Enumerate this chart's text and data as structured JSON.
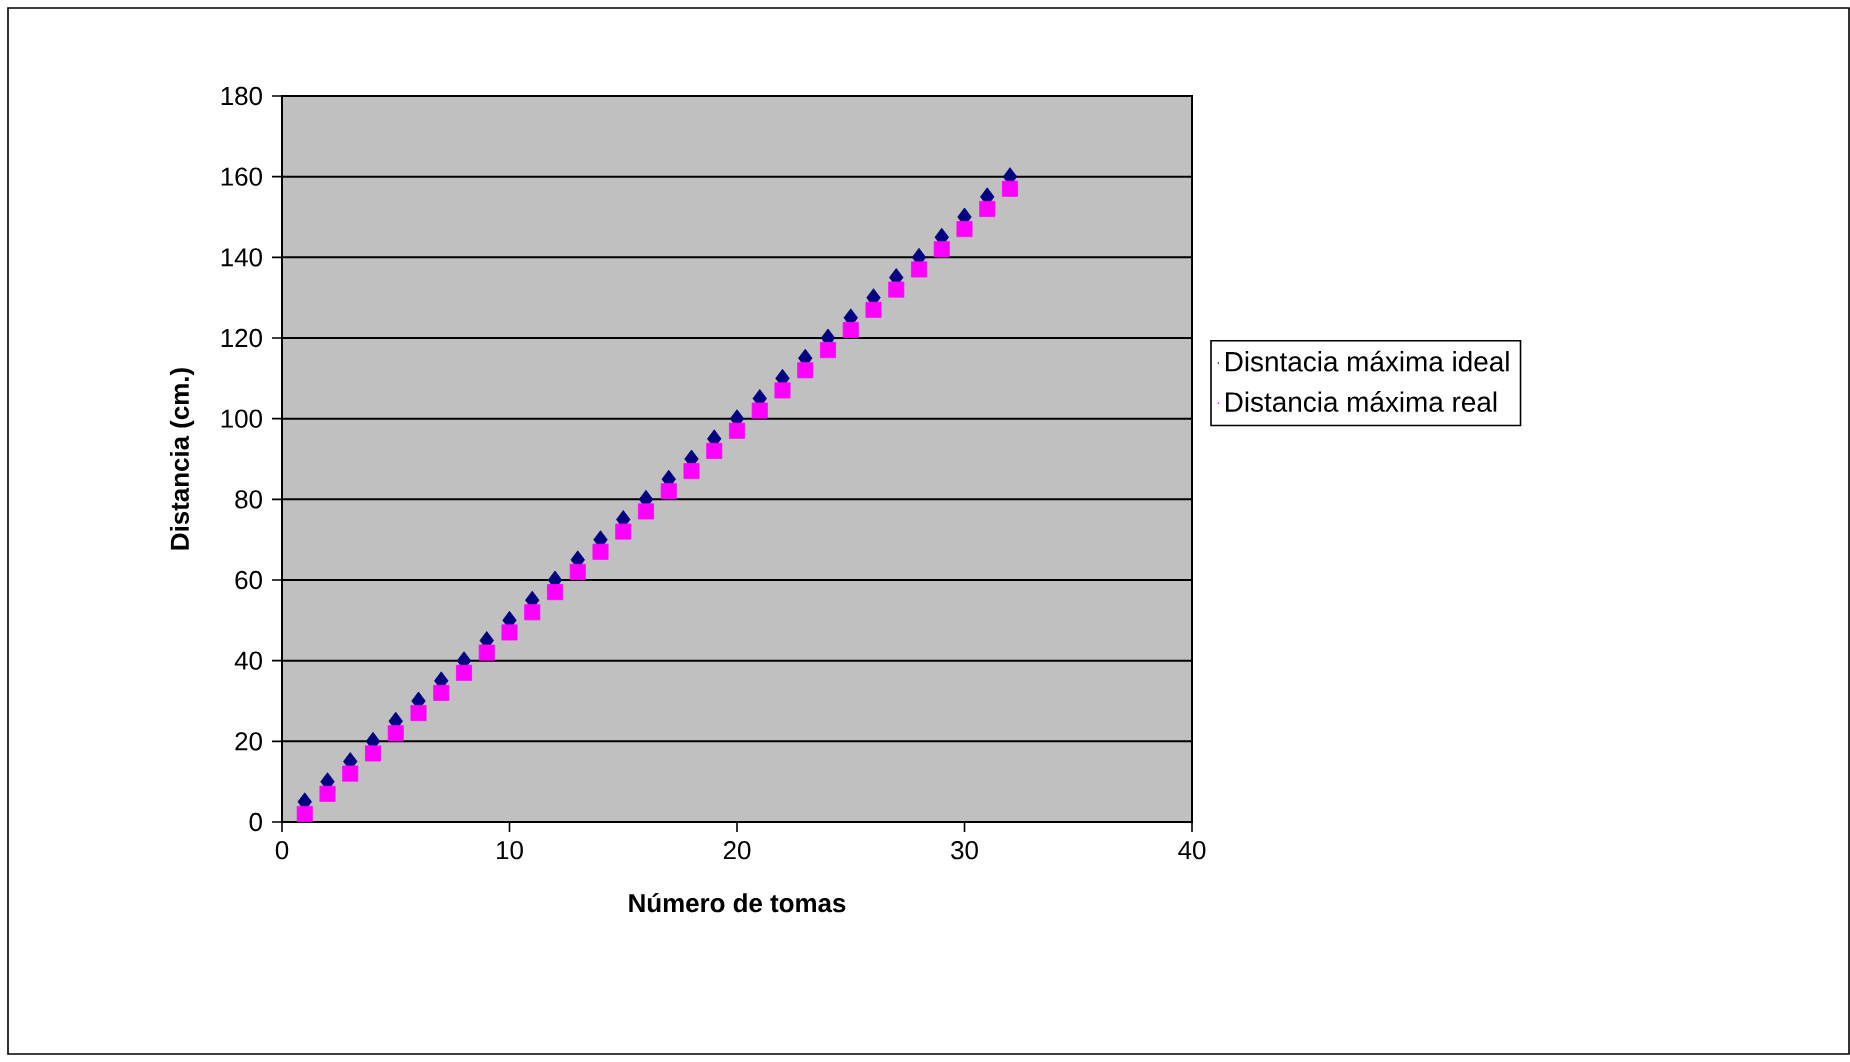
{
  "chart_data": {
    "type": "scatter",
    "xlabel": "Número de tomas",
    "ylabel": "Distancia (cm.)",
    "x": [
      1,
      2,
      3,
      4,
      5,
      6,
      7,
      8,
      9,
      10,
      11,
      12,
      13,
      14,
      15,
      16,
      17,
      18,
      19,
      20,
      21,
      22,
      23,
      24,
      25,
      26,
      27,
      28,
      29,
      30,
      31,
      32
    ],
    "series": [
      {
        "name": "Disntacia máxima ideal",
        "color": "#000080",
        "marker": "diamond",
        "values": [
          5,
          10,
          15,
          20,
          25,
          30,
          35,
          40,
          45,
          50,
          55,
          60,
          65,
          70,
          75,
          80,
          85,
          90,
          95,
          100,
          105,
          110,
          115,
          120,
          125,
          130,
          135,
          140,
          145,
          150,
          155,
          160
        ]
      },
      {
        "name": "Distancia máxima real",
        "color": "#ff00ff",
        "marker": "square",
        "values": [
          2,
          7,
          12,
          17,
          22,
          27,
          32,
          37,
          42,
          47,
          52,
          57,
          62,
          67,
          72,
          77,
          82,
          87,
          92,
          97,
          102,
          107,
          112,
          117,
          122,
          127,
          132,
          137,
          142,
          147,
          152,
          157
        ]
      }
    ],
    "xlim": [
      0,
      40
    ],
    "xticks": [
      0,
      10,
      20,
      30,
      40
    ],
    "ylim": [
      0,
      180
    ],
    "yticks": [
      0,
      20,
      40,
      60,
      80,
      100,
      120,
      140,
      160,
      180
    ],
    "grid": "y",
    "legend": "right"
  }
}
